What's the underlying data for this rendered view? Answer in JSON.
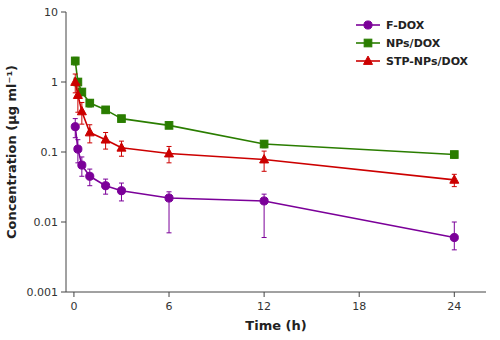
{
  "chart_data": {
    "type": "line",
    "xlabel": "Time (h)",
    "ylabel": "Concentration (μg ml⁻¹)",
    "x": [
      0.083,
      0.25,
      0.5,
      1,
      2,
      3,
      6,
      12,
      24
    ],
    "series": [
      {
        "name": "F-DOX",
        "color": "#7B0099",
        "marker": "circle",
        "values": [
          0.23,
          0.11,
          0.065,
          0.045,
          0.033,
          0.028,
          0.022,
          0.02,
          0.006
        ],
        "yerr_low": [
          0.07,
          0.04,
          0.02,
          0.012,
          0.008,
          0.008,
          0.015,
          0.014,
          0.002
        ],
        "yerr_high": [
          0.07,
          0.04,
          0.02,
          0.012,
          0.008,
          0.008,
          0.005,
          0.005,
          0.004
        ]
      },
      {
        "name": "NPs/DOX",
        "color": "#2A7D00",
        "marker": "square",
        "values": [
          2.0,
          1.0,
          0.72,
          0.5,
          0.4,
          0.3,
          0.24,
          0.13,
          0.092
        ],
        "yerr_low": [
          0.25,
          0.12,
          0.08,
          0.06,
          0.04,
          0.03,
          0.02,
          0.015,
          0.01
        ],
        "yerr_high": [
          0.25,
          0.12,
          0.08,
          0.06,
          0.04,
          0.03,
          0.02,
          0.015,
          0.01
        ]
      },
      {
        "name": "STP-NPs/DOX",
        "color": "#CC0000",
        "marker": "triangle",
        "values": [
          1.0,
          0.65,
          0.38,
          0.19,
          0.15,
          0.115,
          0.095,
          0.078,
          0.04
        ],
        "yerr_low": [
          0.3,
          0.28,
          0.13,
          0.055,
          0.04,
          0.028,
          0.025,
          0.025,
          0.008
        ],
        "yerr_high": [
          0.3,
          0.28,
          0.13,
          0.055,
          0.04,
          0.028,
          0.025,
          0.025,
          0.008
        ]
      }
    ],
    "xlim": [
      -0.5,
      26
    ],
    "ylim": [
      0.001,
      10
    ],
    "xticks": [
      0,
      6,
      12,
      18,
      24
    ],
    "yticks": [
      0.001,
      0.01,
      0.1,
      1,
      10
    ],
    "log": "y",
    "grid": false,
    "legend": "upper right"
  }
}
